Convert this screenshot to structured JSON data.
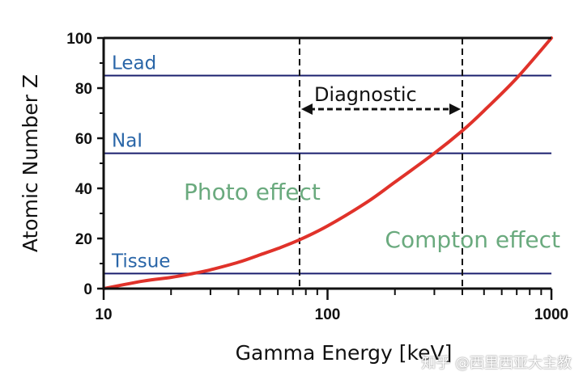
{
  "chart_data": {
    "type": "line",
    "xlabel": "Gamma Energy [keV]",
    "ylabel": "Atomic Number Z",
    "xscale": "log",
    "xlim": [
      10,
      1000
    ],
    "ylim": [
      0,
      100
    ],
    "x_tick_labels": [
      "10",
      "100",
      "1000"
    ],
    "y_tick_labels": [
      "0",
      "20",
      "40",
      "60",
      "80",
      "100"
    ],
    "series": [
      {
        "color": "#e0322a",
        "x": [
          10,
          15,
          20,
          25,
          30,
          40,
          50,
          60,
          75,
          100,
          150,
          200,
          300,
          400,
          500,
          700,
          1000
        ],
        "y": [
          0,
          3,
          4.5,
          6,
          7.5,
          10.5,
          13.5,
          16,
          19.5,
          25,
          34.5,
          42.5,
          54,
          63,
          71,
          84,
          100
        ]
      }
    ],
    "reference_lines": [
      {
        "label": "Lead",
        "z": 85,
        "color": "#1a1f6e"
      },
      {
        "label": "NaI",
        "z": 54,
        "color": "#1a1f6e"
      },
      {
        "label": "Tissue",
        "z": 6,
        "color": "#1a1f6e"
      }
    ],
    "diagnostic_range": {
      "label": "Diagnostic",
      "x_min": 75,
      "x_max": 400
    },
    "regions": [
      {
        "label": "Photo effect"
      },
      {
        "label": "Compton effect"
      }
    ],
    "grid": false,
    "legend": "none"
  },
  "watermark": "知乎 @西里西亚大主教"
}
